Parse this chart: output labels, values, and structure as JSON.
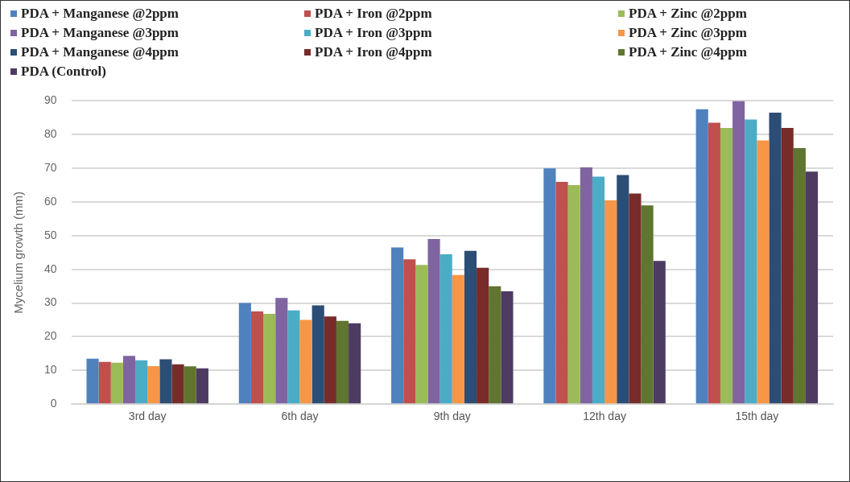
{
  "chart_data": {
    "type": "bar",
    "ylabel": "Mycelium growth (mm)",
    "categories": [
      "3rd day",
      "6th day",
      "9th day",
      "12th day",
      "15th day"
    ],
    "series": [
      {
        "name": "PDA + Manganese @2ppm",
        "color": "#4f81bd",
        "values": [
          13.5,
          30,
          46.5,
          70,
          87.5
        ]
      },
      {
        "name": "PDA + Iron @2ppm",
        "color": "#c0504d",
        "values": [
          12.5,
          27.5,
          43,
          66,
          83.5
        ]
      },
      {
        "name": "PDA + Zinc @2ppm",
        "color": "#9bbb59",
        "values": [
          12.3,
          26.8,
          41.3,
          65,
          82
        ]
      },
      {
        "name": "PDA + Manganese @3ppm",
        "color": "#8064a2",
        "values": [
          14.3,
          31.5,
          49,
          70.3,
          90
        ]
      },
      {
        "name": "PDA + Iron @3ppm",
        "color": "#4bacc6",
        "values": [
          13,
          27.8,
          44.5,
          67.5,
          84.5
        ]
      },
      {
        "name": "PDA + Zinc @3ppm",
        "color": "#f79646",
        "values": [
          11.3,
          25,
          38.3,
          60.5,
          78.3
        ]
      },
      {
        "name": "PDA + Manganese @4ppm",
        "color": "#2c4d75",
        "values": [
          13.3,
          29.3,
          45.5,
          68,
          86.5
        ]
      },
      {
        "name": "PDA + Iron @4ppm",
        "color": "#772c2a",
        "values": [
          11.8,
          26,
          40.5,
          62.5,
          82
        ]
      },
      {
        "name": "PDA + Zinc @4ppm",
        "color": "#5f7530",
        "values": [
          11.2,
          24.7,
          35,
          59,
          76
        ]
      },
      {
        "name": "PDA (Control)",
        "color": "#4d3b62",
        "values": [
          10.6,
          24,
          33.5,
          42.5,
          69
        ]
      }
    ],
    "ylim": [
      0,
      90
    ],
    "yticks": [
      0,
      10,
      20,
      30,
      40,
      50,
      60,
      70,
      80,
      90
    ],
    "grid": "y",
    "legend": "top"
  }
}
